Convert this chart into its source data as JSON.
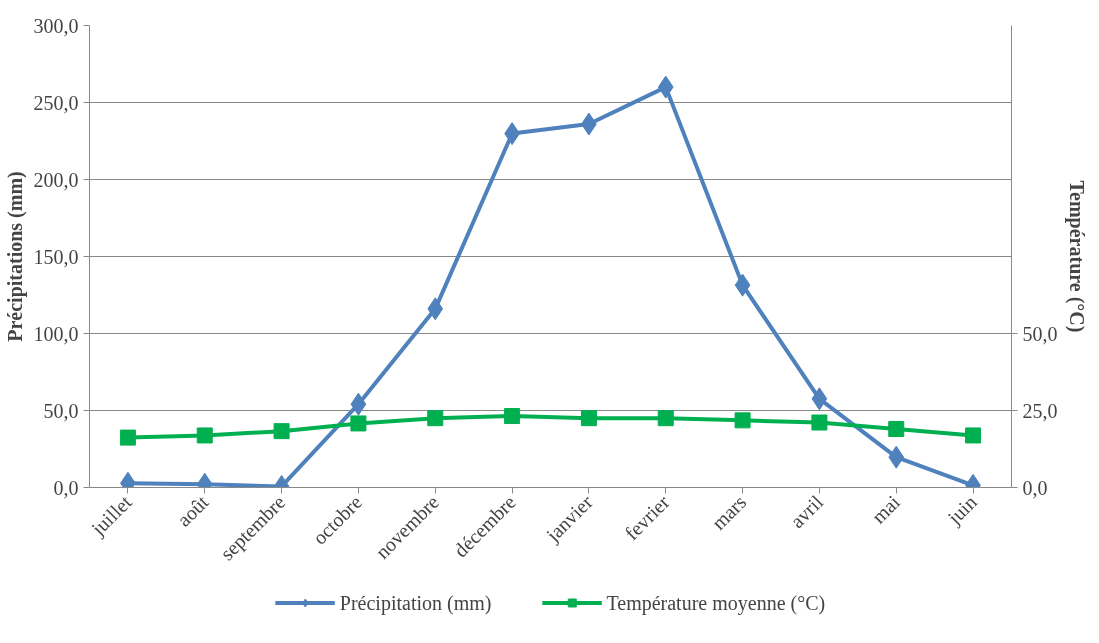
{
  "chart_data": {
    "type": "line",
    "ylabel": "Précipitations (mm)",
    "y2label": "Température (°C)",
    "categories": [
      "juillet",
      "août",
      "septembre",
      "octobre",
      "novembre",
      "décembre",
      "janvier",
      "fevrier",
      "mars",
      "avril",
      "mai",
      "juin"
    ],
    "series": [
      {
        "name": "Précipitation (mm)",
        "color": "#4f81bd",
        "marker": "diamond",
        "values": [
          2.8,
          2.1,
          0.7,
          54.1,
          116,
          229.8,
          236,
          260,
          131.4,
          57.6,
          19.7,
          1.4
        ]
      },
      {
        "name": "Température moyenne (°C)",
        "color": "#00b050",
        "marker": "square",
        "axis": "y2",
        "values": [
          16.2,
          16.9,
          18.3,
          20.8,
          22.5,
          23.2,
          22.5,
          22.5,
          21.8,
          21.1,
          19.0,
          16.9
        ]
      }
    ],
    "ylim": [
      0,
      300
    ],
    "yticks": [
      {
        "value": 0,
        "label": "0,0"
      },
      {
        "value": 50,
        "label": "50,0"
      },
      {
        "value": 100,
        "label": "100,0"
      },
      {
        "value": 150,
        "label": "150,0"
      },
      {
        "value": 200,
        "label": "200,0"
      },
      {
        "value": 250,
        "label": "250,0"
      },
      {
        "value": 300,
        "label": "300,0"
      }
    ],
    "y2lim": [
      0,
      150
    ],
    "y2ticks": [
      {
        "value": 0,
        "label": "0,0"
      },
      {
        "value": 25,
        "label": "25,0"
      },
      {
        "value": 50,
        "label": "50,0"
      }
    ],
    "grid": "y",
    "legend": "bottom",
    "line_style": "solid"
  }
}
